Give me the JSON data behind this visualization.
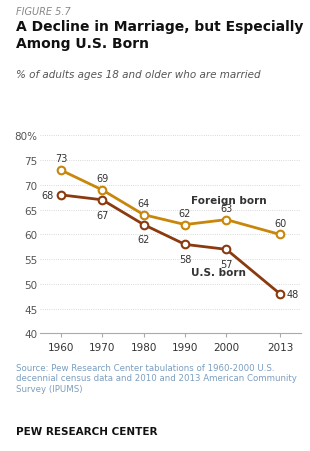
{
  "figure_label": "FIGURE 5.7",
  "title": "A Decline in Marriage, but Especially\nAmong U.S. Born",
  "subtitle": "% of adults ages 18 and older who are married",
  "source_text": "Source: Pew Research Center tabulations of 1960-2000 U.S.\ndecennial census data and 2010 and 2013 American Community\nSurvey (IPUMS)",
  "footer": "PEW RESEARCH CENTER",
  "x_values": [
    1960,
    1970,
    1980,
    1990,
    2000,
    2013
  ],
  "x_labels": [
    "1960",
    "1970",
    "1980",
    "1990",
    "2000",
    "2013"
  ],
  "foreign_born": [
    73,
    69,
    64,
    62,
    63,
    60
  ],
  "us_born": [
    68,
    67,
    62,
    58,
    57,
    48
  ],
  "foreign_color": "#C8860A",
  "us_color": "#8B3A0F",
  "ylim": [
    40,
    82
  ],
  "yticks": [
    40,
    45,
    50,
    55,
    60,
    65,
    70,
    75,
    80
  ],
  "foreign_label": "Foreign born",
  "us_label": "U.S. born",
  "bg_color": "#ffffff",
  "source_color": "#7B9EC0",
  "grid_color": "#cccccc"
}
